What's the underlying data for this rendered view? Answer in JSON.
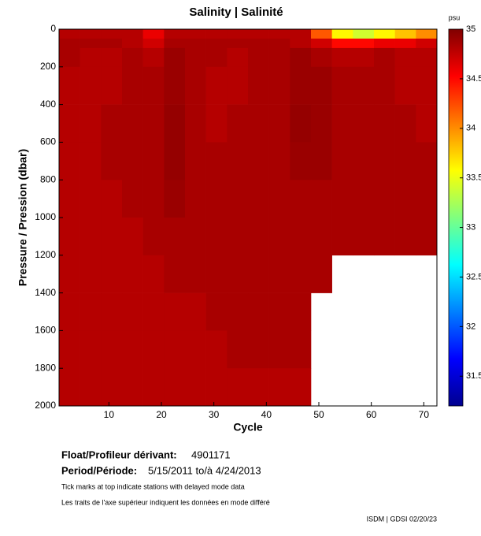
{
  "chart_data": {
    "type": "heatmap",
    "title": "Salinity | Salinité",
    "x_label": "Cycle",
    "y_label": "Pressure / Pression (dbar)",
    "colorbar_label": "psu",
    "xlim": [
      0.5,
      72.5
    ],
    "xticks": [
      10,
      20,
      30,
      40,
      50,
      60,
      70
    ],
    "ylim": [
      2000,
      0
    ],
    "yticks": [
      0,
      200,
      400,
      600,
      800,
      1000,
      1200,
      1400,
      1600,
      1800,
      2000
    ],
    "clim": [
      31.2,
      35
    ],
    "cticks": [
      31.5,
      32,
      32.5,
      33,
      33.5,
      34,
      34.5,
      35
    ],
    "x_bins": [
      0.5,
      4.5,
      8.5,
      12.5,
      16.5,
      20.5,
      24.5,
      28.5,
      32.5,
      36.5,
      40.5,
      44.5,
      48.5,
      52.5,
      56.5,
      60.5,
      64.5,
      68.5,
      72.5
    ],
    "y_bins": [
      0,
      50,
      100,
      200,
      400,
      600,
      800,
      1000,
      1200,
      1400,
      1600,
      1800,
      2000
    ],
    "z": [
      [
        34.8,
        34.8,
        34.8,
        34.8,
        34.6,
        34.8,
        34.8,
        34.8,
        34.8,
        34.8,
        34.8,
        34.8,
        34.2,
        33.6,
        33.4,
        33.6,
        33.8,
        34.0
      ],
      [
        34.85,
        34.85,
        34.85,
        34.8,
        34.7,
        34.85,
        34.85,
        34.85,
        34.85,
        34.85,
        34.85,
        34.8,
        34.7,
        34.5,
        34.5,
        34.6,
        34.6,
        34.7
      ],
      [
        34.85,
        34.8,
        34.8,
        34.85,
        34.8,
        34.9,
        34.85,
        34.85,
        34.8,
        34.85,
        34.85,
        34.9,
        34.85,
        34.8,
        34.8,
        34.85,
        34.8,
        34.8
      ],
      [
        34.8,
        34.8,
        34.8,
        34.85,
        34.85,
        34.9,
        34.85,
        34.8,
        34.8,
        34.85,
        34.85,
        34.9,
        34.9,
        34.85,
        34.85,
        34.85,
        34.8,
        34.8
      ],
      [
        34.8,
        34.8,
        34.85,
        34.85,
        34.85,
        34.92,
        34.85,
        34.8,
        34.85,
        34.85,
        34.85,
        34.92,
        34.9,
        34.85,
        34.85,
        34.85,
        34.85,
        34.8
      ],
      [
        34.8,
        34.8,
        34.85,
        34.85,
        34.85,
        34.92,
        34.85,
        34.85,
        34.85,
        34.85,
        34.85,
        34.9,
        34.9,
        34.85,
        34.85,
        34.85,
        34.85,
        34.85
      ],
      [
        34.8,
        34.8,
        34.8,
        34.85,
        34.85,
        34.9,
        34.85,
        34.85,
        34.85,
        34.85,
        34.85,
        34.85,
        34.85,
        34.85,
        34.85,
        34.85,
        34.85,
        34.85
      ],
      [
        34.8,
        34.8,
        34.8,
        34.8,
        34.85,
        34.85,
        34.85,
        34.85,
        34.85,
        34.85,
        34.85,
        34.85,
        34.85,
        34.85,
        34.85,
        34.85,
        34.85,
        34.85
      ],
      [
        34.8,
        34.8,
        34.8,
        34.8,
        34.8,
        34.85,
        34.85,
        34.85,
        34.85,
        34.85,
        34.85,
        34.85,
        34.85,
        null,
        null,
        null,
        null,
        null
      ],
      [
        34.8,
        34.8,
        34.8,
        34.8,
        34.8,
        34.8,
        34.8,
        34.85,
        34.85,
        34.85,
        34.85,
        34.85,
        null,
        null,
        null,
        null,
        null,
        null
      ],
      [
        34.8,
        34.8,
        34.8,
        34.8,
        34.8,
        34.8,
        34.8,
        34.8,
        34.85,
        34.85,
        34.85,
        34.85,
        null,
        null,
        null,
        null,
        null,
        null
      ],
      [
        34.8,
        34.8,
        34.8,
        34.8,
        34.8,
        34.8,
        34.8,
        34.8,
        34.8,
        34.8,
        34.8,
        34.8,
        null,
        null,
        null,
        null,
        null,
        null
      ]
    ],
    "float_label": "Float/Profileur dérivant:",
    "float_id": "4901171",
    "period_label": "Period/Période:",
    "period": "5/15/2011  to/à  4/24/2013",
    "note_en": "Tick marks at top indicate stations with delayed mode data",
    "note_fr": "Les traits de l'axe supérieur indiquent les données en mode différé",
    "credit": "ISDM | GDSI  02/20/23"
  }
}
